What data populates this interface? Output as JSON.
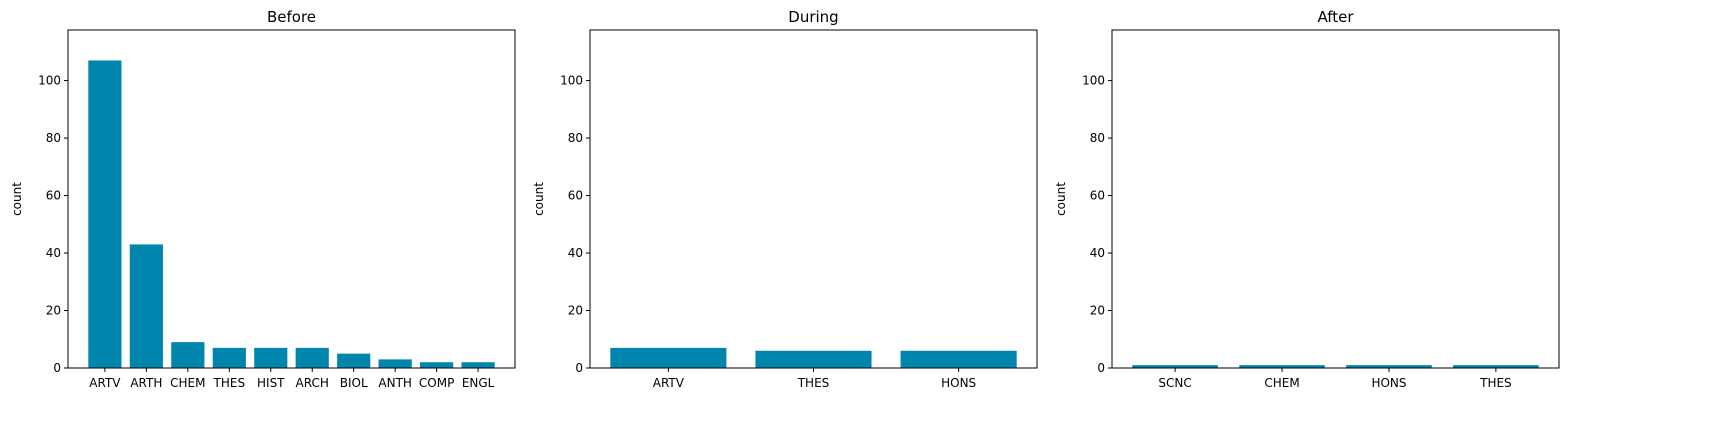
{
  "chart_data": [
    {
      "type": "bar",
      "title": "Before",
      "xlabel": "",
      "ylabel": "count",
      "ylim": [
        0,
        117.6
      ],
      "yticks": [
        0,
        20,
        40,
        60,
        80,
        100
      ],
      "categories": [
        "ARTV",
        "ARTH",
        "CHEM",
        "THES",
        "HIST",
        "ARCH",
        "BIOL",
        "ANTH",
        "COMP",
        "ENGL"
      ],
      "values": [
        107,
        43,
        9,
        7,
        7,
        7,
        5,
        3,
        2,
        2
      ],
      "color": "#0086AD",
      "grid": false
    },
    {
      "type": "bar",
      "title": "During",
      "xlabel": "",
      "ylabel": "count",
      "ylim": [
        0,
        117.6
      ],
      "yticks": [
        0,
        20,
        40,
        60,
        80,
        100
      ],
      "categories": [
        "ARTV",
        "THES",
        "HONS"
      ],
      "values": [
        7,
        6,
        6
      ],
      "color": "#0086AD",
      "grid": false
    },
    {
      "type": "bar",
      "title": "After",
      "xlabel": "",
      "ylabel": "count",
      "ylim": [
        0,
        117.6
      ],
      "yticks": [
        0,
        20,
        40,
        60,
        80,
        100
      ],
      "categories": [
        "SCNC",
        "CHEM",
        "HONS",
        "THES"
      ],
      "values": [
        1,
        1,
        1,
        1
      ],
      "color": "#0086AD",
      "grid": false
    }
  ]
}
